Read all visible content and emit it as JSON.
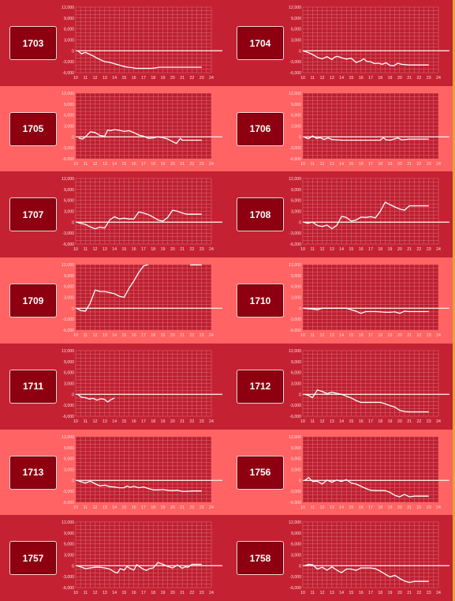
{
  "colors": {
    "band_dark": "#c42233",
    "band_light": "#ff6363",
    "plot_bg": "#bd1f30",
    "line": "#ffffff",
    "grid": "#e07078",
    "button": "#8e0010"
  },
  "chart_data": [
    {
      "type": "line",
      "label": "1703",
      "ylim": [
        -6000,
        12000
      ],
      "yticks": [
        -6000,
        -3000,
        0,
        3000,
        6000,
        9000,
        12000
      ],
      "ytick_labels": [
        "-6,000",
        "-3,000",
        "0",
        "3,000",
        "6,000",
        "9,000",
        "12,000"
      ],
      "xticks": [
        10,
        11,
        12,
        13,
        14,
        15,
        16,
        17,
        18,
        19,
        20,
        21,
        22,
        23,
        24
      ],
      "x": [
        10.2,
        10.6,
        11,
        11.4,
        11.8,
        12.2,
        12.6,
        13,
        13.4,
        13.8,
        14.2,
        14.6,
        15,
        15.4,
        15.8,
        16.2,
        16.6,
        17,
        17.4,
        17.8,
        18.2,
        18.6,
        19,
        19.5,
        20,
        20.5,
        21,
        21.5,
        22,
        22.5,
        23
      ],
      "y": [
        0,
        -800,
        -400,
        -900,
        -1400,
        -2000,
        -2500,
        -3000,
        -3100,
        -3400,
        -3700,
        -4000,
        -4300,
        -4500,
        -4600,
        -4800,
        -4800,
        -4800,
        -4800,
        -4800,
        -4700,
        -4500,
        -4500,
        -4500,
        -4500,
        -4500,
        -4500,
        -4500,
        -4500,
        -4500,
        -4500
      ]
    },
    {
      "type": "line",
      "label": "1704",
      "ylim": [
        -6000,
        12000
      ],
      "yticks": [
        -6000,
        -3000,
        0,
        3000,
        6000,
        9000,
        12000
      ],
      "ytick_labels": [
        "-6,000",
        "-3,000",
        "0",
        "3,000",
        "6,000",
        "9,000",
        "12,000"
      ],
      "xticks": [
        10,
        11,
        12,
        13,
        14,
        15,
        16,
        17,
        18,
        19,
        20,
        21,
        22,
        23,
        24
      ],
      "x": [
        10,
        10.5,
        11,
        11.5,
        12,
        12.5,
        13,
        13.3,
        13.6,
        14,
        14.5,
        15,
        15.5,
        16,
        16.3,
        16.6,
        17,
        17.4,
        17.8,
        18.2,
        18.6,
        19,
        19.4,
        19.8,
        20.2,
        20.6,
        21,
        21.5,
        22,
        22.5,
        23
      ],
      "y": [
        0,
        -400,
        -1000,
        -1800,
        -2200,
        -1600,
        -2400,
        -1700,
        -1500,
        -1900,
        -2300,
        -2000,
        -3200,
        -2700,
        -2200,
        -2900,
        -3000,
        -3500,
        -3400,
        -3700,
        -3300,
        -4000,
        -4100,
        -3400,
        -3700,
        -3800,
        -3900,
        -3900,
        -3900,
        -3900,
        -3900
      ]
    },
    {
      "type": "line",
      "label": "1705",
      "ylim": [
        -6000,
        12000
      ],
      "yticks": [
        -6000,
        -3000,
        0,
        3000,
        6000,
        9000,
        12000
      ],
      "ytick_labels": [
        "-6,000",
        "-3,000",
        "0",
        "3,000",
        "6,000",
        "9,000",
        "12,000"
      ],
      "xticks": [
        10,
        11,
        12,
        13,
        14,
        15,
        16,
        17,
        18,
        19,
        20,
        21,
        22,
        23,
        24
      ],
      "x": [
        10.3,
        10.7,
        11,
        11.5,
        12,
        12.5,
        13,
        13.3,
        13.6,
        14,
        14.5,
        15,
        15.5,
        16,
        16.5,
        17,
        17.5,
        18,
        18.5,
        19,
        19.5,
        20,
        20.4,
        20.8,
        21,
        21.5,
        22,
        22.5,
        23
      ],
      "y": [
        -300,
        -600,
        0,
        1400,
        1200,
        400,
        200,
        1900,
        1700,
        2000,
        1800,
        1500,
        1700,
        1200,
        500,
        200,
        -400,
        -300,
        0,
        -200,
        -600,
        -1300,
        -1800,
        -400,
        -900,
        -900,
        -900,
        -900,
        -900
      ]
    },
    {
      "type": "line",
      "label": "1706",
      "ylim": [
        -6000,
        12000
      ],
      "yticks": [
        -6000,
        -3000,
        0,
        3000,
        6000,
        9000,
        12000
      ],
      "ytick_labels": [
        "-6,000",
        "-3,000",
        "0",
        "3,000",
        "6,000",
        "9,000",
        "12,000"
      ],
      "xticks": [
        10,
        11,
        12,
        13,
        14,
        15,
        16,
        17,
        18,
        19,
        20,
        21,
        22,
        23,
        24
      ],
      "x": [
        10.2,
        10.6,
        11,
        11.4,
        11.8,
        12.2,
        12.6,
        13,
        13.4,
        14,
        14.5,
        15,
        15.5,
        16,
        16.5,
        17,
        17.5,
        18,
        18.3,
        18.6,
        19,
        19.4,
        19.8,
        20.2,
        20.6,
        21,
        21.5,
        22,
        22.5,
        23
      ],
      "y": [
        -200,
        -500,
        300,
        -400,
        -200,
        -700,
        -300,
        -700,
        -800,
        -900,
        -900,
        -900,
        -900,
        -900,
        -900,
        -900,
        -900,
        -900,
        -200,
        -800,
        -900,
        -600,
        -300,
        -800,
        -700,
        -600,
        -600,
        -600,
        -600,
        -600
      ]
    },
    {
      "type": "line",
      "label": "1707",
      "ylim": [
        -6000,
        12000
      ],
      "yticks": [
        -6000,
        -3000,
        0,
        3000,
        6000,
        9000,
        12000
      ],
      "ytick_labels": [
        "-6,000",
        "-3,000",
        "0",
        "3,000",
        "6,000",
        "9,000",
        "12,000"
      ],
      "xticks": [
        10,
        11,
        12,
        13,
        14,
        15,
        16,
        17,
        18,
        19,
        20,
        21,
        22,
        23,
        24
      ],
      "x": [
        10.1,
        10.5,
        11,
        11.5,
        12,
        12.5,
        13,
        13.5,
        14,
        14.5,
        15,
        15.5,
        16,
        16.5,
        17,
        17.5,
        18,
        18.5,
        19,
        19.5,
        20,
        20.5,
        21,
        21.5,
        22,
        22.5,
        23
      ],
      "y": [
        0,
        -300,
        -600,
        -1300,
        -1800,
        -1400,
        -1600,
        600,
        1500,
        900,
        1100,
        900,
        900,
        2800,
        2500,
        2100,
        1400,
        600,
        300,
        1300,
        3300,
        3000,
        2500,
        2200,
        2200,
        2200,
        2200
      ]
    },
    {
      "type": "line",
      "label": "1708",
      "ylim": [
        -6000,
        12000
      ],
      "yticks": [
        -6000,
        -3000,
        0,
        3000,
        6000,
        9000,
        12000
      ],
      "ytick_labels": [
        "-6,000",
        "-3,000",
        "0",
        "3,000",
        "6,000",
        "9,000",
        "12,000"
      ],
      "xticks": [
        10,
        11,
        12,
        13,
        14,
        15,
        16,
        17,
        18,
        19,
        20,
        21,
        22,
        23,
        24
      ],
      "x": [
        10.1,
        10.5,
        11,
        11.5,
        12,
        12.5,
        13,
        13.5,
        14,
        14.5,
        15,
        15.5,
        16,
        16.5,
        17,
        17.5,
        18,
        18.5,
        19,
        19.5,
        20,
        20.5,
        21,
        21.5,
        22,
        22.5,
        23
      ],
      "y": [
        0,
        -300,
        0,
        -900,
        -1200,
        -800,
        -1800,
        -900,
        1600,
        1300,
        300,
        600,
        1400,
        1300,
        1500,
        1200,
        3000,
        5500,
        4800,
        4200,
        3600,
        3300,
        4500,
        4500,
        4500,
        4500,
        4500
      ]
    },
    {
      "type": "line",
      "label": "1709",
      "ylim": [
        -6000,
        12000
      ],
      "yticks": [
        -6000,
        -3000,
        0,
        3000,
        6000,
        9000,
        12000
      ],
      "ytick_labels": [
        "-6,000",
        "-3,000",
        "0",
        "3,000",
        "6,000",
        "9,000",
        "12,000"
      ],
      "xticks": [
        10,
        11,
        12,
        13,
        14,
        15,
        16,
        17,
        18,
        19,
        20,
        21,
        22,
        23,
        24
      ],
      "x": [
        10.1,
        10.5,
        11,
        11.5,
        12,
        12.5,
        13,
        13.5,
        14,
        14.5,
        15,
        15.5,
        16,
        16.5,
        17,
        17.5
      ],
      "y": [
        0,
        -600,
        -800,
        1400,
        5000,
        4600,
        4600,
        4300,
        4000,
        3300,
        3000,
        5500,
        7500,
        9800,
        11600,
        12000
      ],
      "extra_x": [
        21.8,
        23.0
      ],
      "extra_y": [
        12000,
        12000
      ]
    },
    {
      "type": "line",
      "label": "1710",
      "ylim": [
        -6000,
        12000
      ],
      "yticks": [
        -6000,
        -3000,
        0,
        3000,
        6000,
        9000,
        12000
      ],
      "ytick_labels": [
        "-6,000",
        "-3,000",
        "0",
        "3,000",
        "6,000",
        "9,000",
        "12,000"
      ],
      "xticks": [
        10,
        11,
        12,
        13,
        14,
        15,
        16,
        17,
        18,
        19,
        20,
        21,
        22,
        23,
        24
      ],
      "x": [
        10.1,
        10.5,
        11,
        11.5,
        12,
        12.5,
        13,
        13.5,
        14,
        14.5,
        15,
        15.5,
        16,
        16.5,
        17,
        17.5,
        18,
        18.5,
        19,
        19.5,
        20,
        20.5,
        21,
        21.5,
        22,
        22.5,
        23
      ],
      "y": [
        0,
        -100,
        -200,
        -400,
        0,
        0,
        0,
        0,
        0,
        0,
        -400,
        -800,
        -1400,
        -900,
        -900,
        -900,
        -1000,
        -1100,
        -1100,
        -1000,
        -1400,
        -800,
        -900,
        -900,
        -900,
        -900,
        -900
      ]
    },
    {
      "type": "line",
      "label": "1711",
      "ylim": [
        -6000,
        12000
      ],
      "yticks": [
        -6000,
        -3000,
        0,
        3000,
        6000,
        9000,
        12000
      ],
      "ytick_labels": [
        "-6,000",
        "-3,000",
        "0",
        "3,000",
        "6,000",
        "9,000",
        "12,000"
      ],
      "xticks": [
        10,
        11,
        12,
        13,
        14,
        15,
        16,
        17,
        18,
        19,
        20,
        21,
        22,
        23,
        24
      ],
      "x": [
        10.2,
        10.6,
        11,
        11.4,
        11.8,
        12.2,
        12.6,
        13,
        13.3,
        13.6,
        14
      ],
      "y": [
        0,
        -800,
        -900,
        -1300,
        -1100,
        -1600,
        -1200,
        -1400,
        -2100,
        -1500,
        -1000
      ]
    },
    {
      "type": "line",
      "label": "1712",
      "ylim": [
        -6000,
        12000
      ],
      "yticks": [
        -6000,
        -3000,
        0,
        3000,
        6000,
        9000,
        12000
      ],
      "ytick_labels": [
        "-6,000",
        "-3,000",
        "0",
        "3,000",
        "6,000",
        "9,000",
        "12,000"
      ],
      "xticks": [
        10,
        11,
        12,
        13,
        14,
        15,
        16,
        17,
        18,
        19,
        20,
        21,
        22,
        23,
        24
      ],
      "x": [
        10.2,
        10.6,
        11,
        11.5,
        12,
        12.5,
        13,
        13.5,
        14,
        14.5,
        15,
        15.5,
        16,
        16.5,
        17,
        17.5,
        18,
        18.5,
        19,
        19.5,
        20,
        20.5,
        21,
        21.5,
        22,
        22.5,
        23
      ],
      "y": [
        0,
        -300,
        -900,
        1200,
        800,
        200,
        600,
        300,
        0,
        -500,
        -1000,
        -1700,
        -2200,
        -2200,
        -2200,
        -2200,
        -2200,
        -2600,
        -3100,
        -3500,
        -4400,
        -4700,
        -4800,
        -4800,
        -4800,
        -4800,
        -4800
      ]
    },
    {
      "type": "line",
      "label": "1713",
      "ylim": [
        -6000,
        12000
      ],
      "yticks": [
        -6000,
        -3000,
        0,
        3000,
        6000,
        9000,
        12000
      ],
      "ytick_labels": [
        "-6,000",
        "-3,000",
        "0",
        "3,000",
        "6,000",
        "9,000",
        "12,000"
      ],
      "xticks": [
        10,
        11,
        12,
        13,
        14,
        15,
        16,
        17,
        18,
        19,
        20,
        21,
        22,
        23,
        24
      ],
      "x": [
        10.1,
        10.5,
        11,
        11.5,
        12,
        12.5,
        13,
        13.5,
        14,
        14.5,
        15,
        15.3,
        15.6,
        16,
        16.5,
        17,
        17.5,
        18,
        18.5,
        19,
        19.5,
        20,
        20.5,
        21,
        21.5,
        22,
        22.5,
        23
      ],
      "y": [
        0,
        -300,
        -700,
        -200,
        -900,
        -1500,
        -1300,
        -1700,
        -1800,
        -2000,
        -2000,
        -1500,
        -1900,
        -1600,
        -2000,
        -1800,
        -2200,
        -2600,
        -2600,
        -2500,
        -2700,
        -2800,
        -2700,
        -3000,
        -3000,
        -2900,
        -2900,
        -2900
      ]
    },
    {
      "type": "line",
      "label": "1756",
      "ylim": [
        -6000,
        12000
      ],
      "yticks": [
        -6000,
        -3000,
        0,
        3000,
        6000,
        9000,
        12000
      ],
      "ytick_labels": [
        "-6,000",
        "-3,000",
        "0",
        "3,000",
        "6,000",
        "9,000",
        "12,000"
      ],
      "xticks": [
        10,
        11,
        12,
        13,
        14,
        15,
        16,
        17,
        18,
        19,
        20,
        21,
        22,
        23,
        24
      ],
      "x": [
        10.2,
        10.6,
        11,
        11.5,
        12,
        12.5,
        13,
        13.5,
        14,
        14.5,
        15,
        15.5,
        16,
        16.5,
        17,
        17.5,
        18,
        18.5,
        19,
        19.5,
        20,
        20.5,
        21,
        21.5,
        22,
        22.5,
        23
      ],
      "y": [
        0,
        800,
        -300,
        -200,
        -1000,
        100,
        -500,
        100,
        -300,
        200,
        -700,
        -1000,
        -1600,
        -2200,
        -2700,
        -2800,
        -2800,
        -2800,
        -3300,
        -4100,
        -4500,
        -3800,
        -4500,
        -4300,
        -4300,
        -4300,
        -4300
      ]
    },
    {
      "type": "line",
      "label": "1757",
      "ylim": [
        -6000,
        12000
      ],
      "yticks": [
        -6000,
        -3000,
        0,
        3000,
        6000,
        9000,
        12000
      ],
      "ytick_labels": [
        "-6,000",
        "-3,000",
        "0",
        "3,000",
        "6,000",
        "9,000",
        "12,000"
      ],
      "xticks": [
        10,
        11,
        12,
        13,
        14,
        15,
        16,
        17,
        18,
        19,
        20,
        21,
        22,
        23,
        24
      ],
      "x": [
        10.1,
        10.5,
        11,
        11.5,
        12,
        12.5,
        13,
        13.5,
        14,
        14.3,
        14.6,
        15,
        15.3,
        15.6,
        16,
        16.3,
        16.6,
        17,
        17.3,
        17.6,
        18,
        18.5,
        19,
        19.5,
        20,
        20.5,
        21,
        21.3,
        21.6,
        22,
        22.5,
        23
      ],
      "y": [
        0,
        -300,
        -800,
        -600,
        -400,
        -400,
        -600,
        -900,
        -1700,
        -2000,
        -800,
        -1200,
        -200,
        -700,
        -1200,
        300,
        -300,
        -1000,
        -1300,
        -800,
        -600,
        900,
        400,
        -200,
        -600,
        200,
        -700,
        -300,
        -400,
        400,
        400,
        400
      ]
    },
    {
      "type": "line",
      "label": "1758",
      "ylim": [
        -6000,
        12000
      ],
      "yticks": [
        -6000,
        -3000,
        0,
        3000,
        6000,
        9000,
        12000
      ],
      "ytick_labels": [
        "-6,000",
        "-3,000",
        "0",
        "3,000",
        "6,000",
        "9,000",
        "12,000"
      ],
      "xticks": [
        10,
        11,
        12,
        13,
        14,
        15,
        16,
        17,
        18,
        19,
        20,
        21,
        22,
        23,
        24
      ],
      "x": [
        10.2,
        10.6,
        11,
        11.5,
        12,
        12.5,
        13,
        13.5,
        14,
        14.5,
        15,
        15.5,
        16,
        16.5,
        17,
        17.5,
        18,
        18.5,
        19,
        19.5,
        20,
        20.5,
        21,
        21.5,
        22,
        22.5,
        23
      ],
      "y": [
        0,
        400,
        300,
        -900,
        -400,
        -1200,
        -300,
        -1200,
        -1900,
        -900,
        -900,
        -1300,
        -600,
        -600,
        -600,
        -800,
        -1500,
        -2300,
        -3100,
        -2600,
        -3500,
        -4200,
        -4600,
        -4300,
        -4300,
        -4300,
        -4300
      ]
    }
  ]
}
